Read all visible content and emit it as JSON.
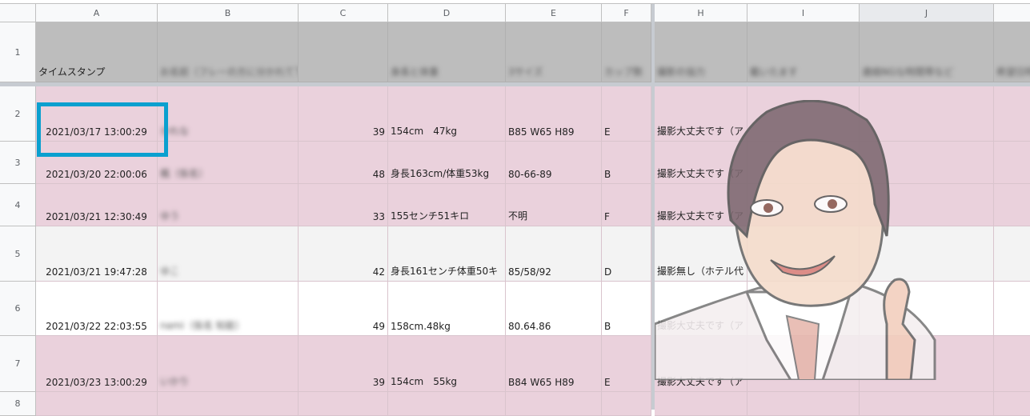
{
  "columns": [
    "A",
    "B",
    "C",
    "D",
    "E",
    "F",
    "H",
    "I",
    "J",
    ""
  ],
  "rows": [
    "1",
    "2",
    "3",
    "4",
    "5",
    "6",
    "7",
    "8"
  ],
  "header_row": {
    "A": "タイムスタンプ",
    "B": "お名前（フレーの方に分かれて下部",
    "C": "",
    "D": "身長と体重",
    "E": "3サイズ",
    "F": "カップ数",
    "H": "撮影の協力",
    "I": "載いたます",
    "J": "連絡NGな時間帯など",
    "K": "希望日時"
  },
  "data_rows": [
    {
      "A": "2021/03/17 13:00:29",
      "B": "かれな",
      "C": "39",
      "D": "154cm　47kg",
      "E": "B85  W65  H89",
      "F": "E",
      "H": "撮影大丈夫です（ア"
    },
    {
      "A": "2021/03/20 22:00:06",
      "B": "楓（仮名）",
      "C": "48",
      "D": "身長163cm/体重53kg",
      "E": "80-66-89",
      "F": "B",
      "H": "撮影大丈夫です（ア"
    },
    {
      "A": "2021/03/21 12:30:49",
      "B": "ゆう",
      "C": "33",
      "D": "155センチ51キロ",
      "E": "不明",
      "F": "F",
      "H": "撮影大丈夫です（ア"
    },
    {
      "A": "2021/03/21 19:47:28",
      "B": "ゆこ",
      "C": "42",
      "D": "身長161センチ体重50キ",
      "E": "85/58/92",
      "F": "D",
      "H": "撮影無し（ホテル代"
    },
    {
      "A": "2021/03/22 22:03:55",
      "B": "nami（仮名 知能）",
      "C": "49",
      "D": "158cm.48kg",
      "E": "80.64.86",
      "F": "B",
      "H": "撮影大丈夫です（ア"
    },
    {
      "A": "2021/03/23 13:00:29",
      "B": "いかり",
      "C": "39",
      "D": "154cm　55kg",
      "E": "B84  W65  H89",
      "F": "E",
      "H": "撮影大丈夫です（ア"
    }
  ],
  "colors": {
    "pink_row": "#ead1dc",
    "gray_row": "#f3f3f3",
    "header_row": "#bdbdbd",
    "selection": "#0aa0cf"
  },
  "selected_cell": "A2",
  "overlay": "thumbs-up-man-illustration"
}
